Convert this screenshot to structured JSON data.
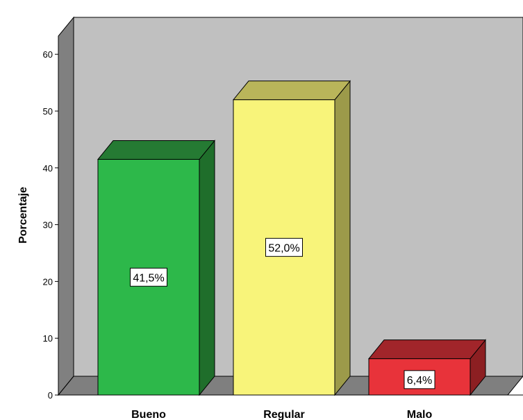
{
  "chart_data": {
    "type": "bar",
    "title": "",
    "xlabel": "",
    "ylabel": "Porcentaje",
    "ylim": [
      0,
      60
    ],
    "yticks": [
      0,
      10,
      20,
      30,
      40,
      50,
      60
    ],
    "grid": false,
    "legend": "none",
    "three_d": true,
    "categories": [
      "Bueno",
      "Regular",
      "Malo"
    ],
    "values": [
      41.5,
      52.0,
      6.4
    ],
    "data_labels": [
      "41,5%",
      "52,0%",
      "6,4%"
    ],
    "colors": [
      "#2db84a",
      "#f8f47a",
      "#e8333a"
    ],
    "side_colors": [
      "#1f6e2b",
      "#9c9a4a",
      "#8c1f22"
    ],
    "top_colors": [
      "#257a33",
      "#b9b55a",
      "#a1252a"
    ],
    "wall_color": "#c0c0c0",
    "floor_color": "#7f7f7f",
    "left_wall_color": "#808080"
  }
}
